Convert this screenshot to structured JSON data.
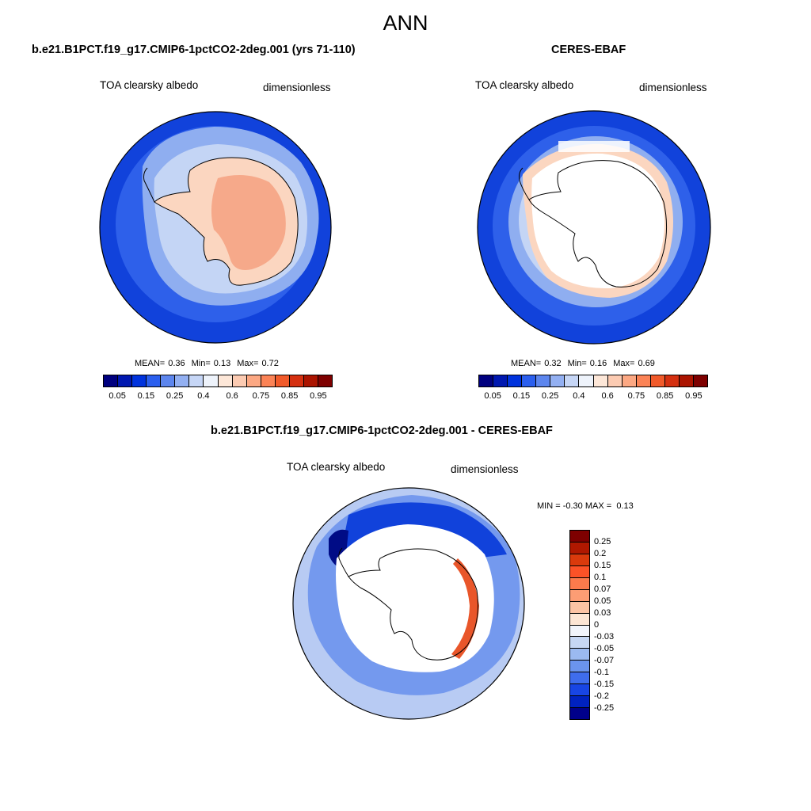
{
  "title": "ANN",
  "panels": [
    {
      "heading": "b.e21.B1PCT.f19_g17.CMIP6-1pctCO2-2deg.001 (yrs 71-110)",
      "variable": "TOA clearsky albedo",
      "units": "dimensionless",
      "stats": {
        "mean_label": "MEAN=",
        "mean": "0.36",
        "min_label": "Min=",
        "min": "0.13",
        "max_label": "Max=",
        "max": "0.72"
      }
    },
    {
      "heading": "CERES-EBAF",
      "variable": "TOA clearsky albedo",
      "units": "dimensionless",
      "stats": {
        "mean_label": "MEAN=",
        "mean": "0.32",
        "min_label": "Min=",
        "min": "0.16",
        "max_label": "Max=",
        "max": "0.69"
      }
    },
    {
      "heading": "b.e21.B1PCT.f19_g17.CMIP6-1pctCO2-2deg.001 - CERES-EBAF",
      "variable": "TOA clearsky albedo",
      "units": "dimensionless",
      "stats": {
        "min_label": "MIN =",
        "min": "-0.30",
        "max_label": "MAX =",
        "max": "0.13"
      }
    }
  ],
  "colorbars": {
    "absolute": {
      "colors": [
        "#00007f",
        "#0018b0",
        "#0033dd",
        "#2b5fee",
        "#5d86ee",
        "#93b0f2",
        "#c6d6f6",
        "#eef3fb",
        "#fde7d8",
        "#fccbb2",
        "#fca883",
        "#fb8356",
        "#f15a2a",
        "#d53010",
        "#ab1400",
        "#7e0000"
      ],
      "labels": [
        "0.05",
        "0.15",
        "0.25",
        "0.4",
        "0.6",
        "0.75",
        "0.85",
        "0.95"
      ]
    },
    "difference": {
      "colors": [
        "#7e0000",
        "#b01800",
        "#da3a0c",
        "#fc5227",
        "#fc7a4c",
        "#fc9d74",
        "#fcc3a4",
        "#fce5d4",
        "#f1f4fb",
        "#c6d7f4",
        "#9bbaf1",
        "#6b94ed",
        "#3f6ded",
        "#1845e4",
        "#0022c0",
        "#00008a"
      ],
      "labels": [
        "0.25",
        "0.2",
        "0.15",
        "0.1",
        "0.07",
        "0.05",
        "0.03",
        "0",
        "-0.03",
        "-0.05",
        "-0.07",
        "-0.1",
        "-0.15",
        "-0.2",
        "-0.25"
      ]
    }
  },
  "map_colors": {
    "deep_blue": "#1142db",
    "mid_blue": "#2e60ea",
    "light_blue": "#8faef0",
    "pale_blue": "#c4d5f5",
    "pale_peach": "#fbd6c0",
    "peach": "#f9b89a",
    "coral": "#f49a78",
    "navy": "#000c86",
    "diff_light": "#b8cbf3",
    "diff_mid": "#7499ee",
    "diff_red": "#e9562a",
    "land_white": "#ffffff"
  }
}
